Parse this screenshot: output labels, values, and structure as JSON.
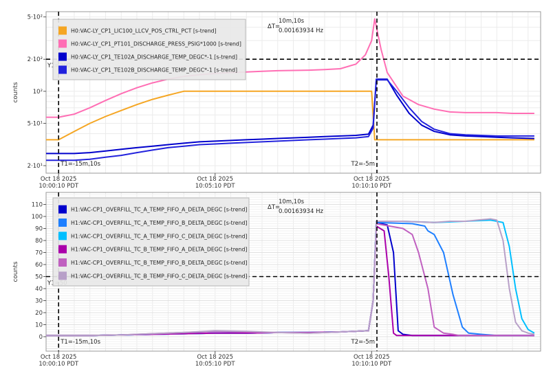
{
  "chart_data": [
    {
      "type": "line",
      "ylabel": "counts",
      "yscale": "log",
      "ylim": [
        17,
        560
      ],
      "xlim": [
        -0.4,
        15.4
      ],
      "y_ticks": [
        20,
        50,
        100,
        200,
        500
      ],
      "y_tick_labels": [
        "2·10¹",
        "5·10¹",
        "10²",
        "2·10²",
        "5·10²"
      ],
      "x_ticks": [
        {
          "x": 0,
          "line1": "Oct 18 2025",
          "line2": "10:00:10 PDT"
        },
        {
          "x": 5,
          "line1": "Oct 18 2025",
          "line2": "10:05:10 PDT"
        },
        {
          "x": 10,
          "line1": "Oct 18 2025",
          "line2": "10:10:10 PDT"
        }
      ],
      "grid": true,
      "legend_position": "top-left",
      "cursors": {
        "t1": {
          "x": 0,
          "label": "T1=-15m,10s"
        },
        "t2": {
          "x": 10.17,
          "label": "T2=-5m"
        },
        "y1": {
          "y": 200,
          "label": "Y1=200"
        },
        "delta": {
          "label": "ΔT=",
          "value": "10m,10s",
          "freq": "0.00163934 Hz"
        }
      },
      "series": [
        {
          "name": "H0:VAC-LY_CP1_LIC100_LLCV_POS_CTRL_PCT [s-trend]",
          "color": "#f5a623",
          "x": [
            -0.4,
            0,
            0.5,
            1,
            1.5,
            2,
            2.5,
            3,
            3.5,
            4,
            4.5,
            5,
            5.5,
            10.0,
            10.1,
            15.2
          ],
          "values": [
            35,
            35,
            42,
            50,
            58,
            66,
            75,
            84,
            92,
            100,
            100,
            100,
            100,
            100,
            35,
            35
          ]
        },
        {
          "name": "H0:VAC-LY_CP1_PT101_DISCHARGE_PRESS_PSIG*1000 [s-trend]",
          "color": "#ff6eb4",
          "x": [
            -0.4,
            0,
            0.5,
            1,
            1.5,
            2,
            2.5,
            3,
            3.5,
            4,
            4.5,
            5,
            5.5,
            6,
            6.5,
            7,
            7.5,
            8,
            8.5,
            9,
            9.5,
            9.8,
            10.0,
            10.1,
            10.3,
            10.5,
            11,
            11.5,
            12,
            12.5,
            13,
            13.5,
            14,
            14.5,
            15.2
          ],
          "values": [
            57,
            57,
            61,
            70,
            82,
            95,
            108,
            120,
            130,
            138,
            143,
            147,
            150,
            152,
            154,
            156,
            157,
            158,
            160,
            163,
            180,
            220,
            300,
            480,
            250,
            150,
            90,
            75,
            68,
            64,
            63,
            63,
            63,
            62,
            62
          ]
        },
        {
          "name": "H0:VAC-LY_CP1_TE102A_DISCHARGE_TEMP_DEGC*-1 [s-trend]",
          "color": "#0000cc",
          "x": [
            -0.4,
            0,
            0.5,
            1,
            1.5,
            2,
            2.5,
            3,
            3.5,
            4,
            4.5,
            5,
            5.5,
            6,
            6.5,
            7,
            7.5,
            8,
            8.5,
            9,
            9.5,
            9.9,
            10.05,
            10.15,
            10.5,
            10.8,
            11.2,
            11.6,
            12,
            12.5,
            13,
            13.5,
            14,
            14.5,
            15.2
          ],
          "values": [
            26,
            26,
            26,
            26.5,
            27.5,
            28.5,
            29.5,
            30.5,
            31.5,
            32.5,
            33.5,
            34,
            34.5,
            35,
            35.5,
            36,
            36.5,
            37,
            37.5,
            38,
            38.5,
            39.5,
            48,
            130,
            130,
            92,
            62,
            48,
            42,
            39,
            38,
            37.5,
            37,
            36.5,
            36
          ]
        },
        {
          "name": "H0:VAC-LY_CP1_TE102B_DISCHARGE_TEMP_DEGC*-1 [s-trend]",
          "color": "#2222dd",
          "x": [
            -0.4,
            0,
            0.5,
            1,
            1.5,
            2,
            2.5,
            3,
            3.5,
            4,
            4.5,
            5,
            5.5,
            6,
            6.5,
            7,
            7.5,
            8,
            8.5,
            9,
            9.5,
            9.9,
            10.05,
            10.15,
            10.5,
            10.8,
            11.2,
            11.6,
            12,
            12.5,
            13,
            13.5,
            14,
            14.5,
            15.2
          ],
          "values": [
            22.5,
            22.5,
            22.5,
            23,
            24,
            25,
            26.5,
            28,
            29.5,
            30.5,
            31.5,
            32,
            32.5,
            33,
            33.5,
            34,
            34.5,
            35,
            35.5,
            36,
            36.5,
            37.5,
            45,
            128,
            128,
            100,
            70,
            52,
            44,
            40,
            39,
            38.5,
            38,
            38,
            38
          ]
        }
      ]
    },
    {
      "type": "line",
      "ylabel": "counts",
      "ylim": [
        -12,
        120
      ],
      "xlim": [
        -0.4,
        15.4
      ],
      "y_ticks": [
        0,
        10,
        20,
        30,
        40,
        50,
        60,
        70,
        80,
        90,
        100,
        110
      ],
      "x_ticks": [
        {
          "x": 0,
          "line1": "Oct 18 2025",
          "line2": "10:00:10 PDT"
        },
        {
          "x": 5,
          "line1": "Oct 18 2025",
          "line2": "10:05:10 PDT"
        },
        {
          "x": 10,
          "line1": "Oct 18 2025",
          "line2": "10:10:10 PDT"
        }
      ],
      "grid": true,
      "legend_position": "top-left",
      "cursors": {
        "t1": {
          "x": 0,
          "label": "T1=-15m,10s"
        },
        "t2": {
          "x": 10.17,
          "label": "T2=-5m"
        },
        "y1": {
          "y": 50,
          "label": "Y1=50"
        },
        "delta": {
          "label": "ΔT=",
          "value": "10m,10s",
          "freq": "0.00163934 Hz"
        }
      },
      "series": [
        {
          "name": "H1:VAC-CP1_OVERFILL_TC_A_TEMP_FIFO_A_DELTA_DEGC [s-trend]",
          "color": "#0000cc",
          "x": [
            -0.4,
            0,
            1,
            2,
            3,
            4,
            5,
            6,
            7,
            8,
            9,
            9.9,
            10.05,
            10.15,
            10.5,
            10.7,
            10.85,
            11.0,
            11.3,
            11.5,
            11.7,
            11.9,
            12.0,
            12.5,
            13,
            14,
            14.5,
            15.2
          ],
          "values": [
            1,
            1,
            1,
            1.5,
            2,
            2.5,
            3,
            3,
            3.5,
            3.5,
            4,
            5,
            30,
            95,
            93,
            70,
            5,
            2,
            1,
            1,
            1,
            1,
            1,
            1,
            1,
            1,
            1,
            1
          ]
        },
        {
          "name": "H1:VAC-CP1_OVERFILL_TC_A_TEMP_FIFO_B_DELTA_DEGC [s-trend]",
          "color": "#1e7fff",
          "x": [
            -0.4,
            0,
            1,
            2,
            3,
            4,
            5,
            6,
            7,
            8,
            9,
            9.9,
            10.05,
            10.15,
            11.3,
            11.7,
            11.8,
            12.0,
            12.3,
            12.6,
            12.9,
            13.1,
            13.5,
            14,
            15.2
          ],
          "values": [
            1,
            1,
            1,
            1.5,
            2,
            2.5,
            3,
            3,
            3.5,
            3.5,
            4,
            5,
            30,
            95,
            94,
            92,
            88,
            85,
            70,
            35,
            8,
            3,
            2,
            1,
            1
          ]
        },
        {
          "name": "H1:VAC-CP1_OVERFILL_TC_A_TEMP_FIFO_C_DELTA_DEGC [s-trend]",
          "color": "#00bfff",
          "x": [
            -0.4,
            0,
            1,
            2,
            3,
            4,
            5,
            6,
            7,
            8,
            9,
            9.9,
            10.05,
            10.15,
            11,
            12,
            13,
            13.8,
            14.2,
            14.4,
            14.6,
            14.8,
            15.0,
            15.2
          ],
          "values": [
            1,
            1,
            1,
            1.5,
            2,
            2.5,
            3,
            3,
            3.5,
            3.5,
            4,
            5,
            30,
            96,
            96,
            95,
            96,
            97,
            95,
            75,
            40,
            15,
            6,
            3
          ]
        },
        {
          "name": "H1:VAC-CP1_OVERFILL_TC_B_TEMP_FIFO_A_DELTA_DEGC [s-trend]",
          "color": "#aa00aa",
          "x": [
            -0.4,
            0,
            1,
            2,
            3,
            4,
            5,
            6,
            7,
            8,
            9,
            9.9,
            10.05,
            10.15,
            10.4,
            10.55,
            10.7,
            10.8,
            11.0,
            11.2,
            11.5,
            11.8,
            12.0,
            12.4,
            12.6,
            12.7,
            12.9,
            13.2,
            13.5,
            14,
            15.2
          ],
          "values": [
            1,
            1,
            1,
            1.5,
            2,
            2.5,
            3,
            3,
            3.5,
            3.5,
            4,
            5,
            30,
            92,
            88,
            50,
            3,
            1,
            1,
            1,
            1,
            1,
            1,
            1,
            1,
            1,
            1,
            1,
            1,
            1,
            1
          ]
        },
        {
          "name": "H1:VAC-CP1_OVERFILL_TC_B_TEMP_FIFO_B_DELTA_DEGC [s-trend]",
          "color": "#c060c0",
          "x": [
            -0.4,
            0,
            1,
            2,
            3,
            4,
            5,
            6,
            7,
            8,
            9,
            9.9,
            10.05,
            10.15,
            11.0,
            11.3,
            11.5,
            11.8,
            12.0,
            12.3,
            12.6,
            12.8,
            13.0,
            13.5,
            14,
            15.2
          ],
          "values": [
            1,
            1,
            1,
            1.5,
            2.5,
            3.5,
            4.5,
            4,
            3.5,
            3,
            4,
            5,
            30,
            94,
            90,
            85,
            70,
            40,
            8,
            3,
            2,
            1,
            1,
            1,
            1,
            1
          ]
        },
        {
          "name": "H1:VAC-CP1_OVERFILL_TC_B_TEMP_FIFO_C_DELTA_DEGC [s-trend]",
          "color": "#b8a0c8",
          "x": [
            -0.4,
            0,
            1,
            2,
            3,
            4,
            5,
            6,
            7,
            8,
            9,
            9.9,
            10.05,
            10.15,
            11,
            12,
            12.5,
            13,
            13.8,
            14.0,
            14.2,
            14.4,
            14.6,
            14.8,
            15.0,
            15.2
          ],
          "values": [
            1,
            1,
            1,
            1.5,
            2.5,
            3.5,
            5,
            4.5,
            3.5,
            3,
            4,
            5,
            30,
            96,
            96,
            95,
            96,
            96,
            98,
            97,
            80,
            40,
            12,
            5,
            3,
            2
          ]
        }
      ]
    }
  ]
}
